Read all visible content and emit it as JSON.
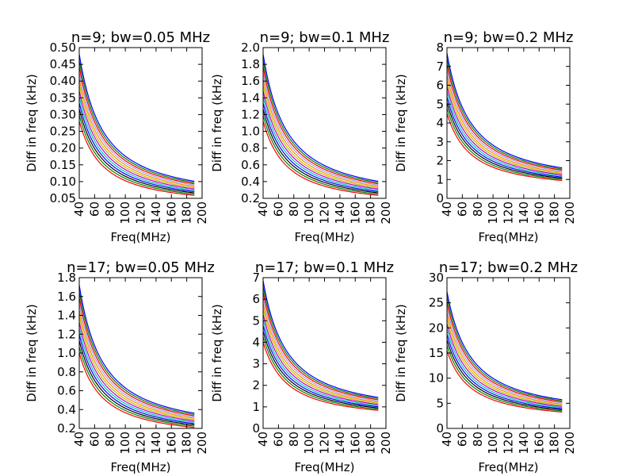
{
  "figure": {
    "background": "#ffffff"
  },
  "series_colors": [
    "#ff0000",
    "#008000",
    "#000000",
    "#0000ff",
    "#00bfbf",
    "#bf00bf",
    "#bfbf00",
    "#ff8c00",
    "#a0a0ff",
    "#ff0000",
    "#008000",
    "#0000ff"
  ],
  "chart_data": [
    {
      "type": "line",
      "title": "n=9; bw=0.05 MHz",
      "xlabel": "Freq(MHz)",
      "ylabel": "Diff in freq (kHz)",
      "xlim": [
        40,
        200
      ],
      "ylim": [
        0.05,
        0.5
      ],
      "xticks": [
        40,
        60,
        80,
        100,
        120,
        140,
        160,
        180,
        200
      ],
      "yticks": [
        0.05,
        0.1,
        0.15,
        0.2,
        0.25,
        0.3,
        0.35,
        0.4,
        0.45,
        0.5
      ],
      "ytick_labels": [
        "0.05",
        "0.10",
        "0.15",
        "0.20",
        "0.25",
        "0.30",
        "0.35",
        "0.40",
        "0.45",
        "0.50"
      ],
      "x_range": [
        40,
        190
      ],
      "y_at_start_range": [
        0.28,
        0.48
      ],
      "series_count": 12,
      "grid": false
    },
    {
      "type": "line",
      "title": "n=9; bw=0.1 MHz",
      "xlabel": "Freq(MHz)",
      "ylabel": "Diff in freq (kHz)",
      "xlim": [
        40,
        200
      ],
      "ylim": [
        0.2,
        2.0
      ],
      "xticks": [
        40,
        60,
        80,
        100,
        120,
        140,
        160,
        180,
        200
      ],
      "yticks": [
        0.2,
        0.4,
        0.6,
        0.8,
        1.0,
        1.2,
        1.4,
        1.6,
        1.8,
        2.0
      ],
      "ytick_labels": [
        "0.2",
        "0.4",
        "0.6",
        "0.8",
        "1.0",
        "1.2",
        "1.4",
        "1.6",
        "1.8",
        "2.0"
      ],
      "x_range": [
        40,
        190
      ],
      "y_at_start_range": [
        1.12,
        1.92
      ],
      "series_count": 12,
      "grid": false
    },
    {
      "type": "line",
      "title": "n=9; bw=0.2 MHz",
      "xlabel": "Freq(MHz)",
      "ylabel": "Diff in freq (kHz)",
      "xlim": [
        40,
        200
      ],
      "ylim": [
        0,
        8
      ],
      "xticks": [
        40,
        60,
        80,
        100,
        120,
        140,
        160,
        180,
        200
      ],
      "yticks": [
        0,
        1,
        2,
        3,
        4,
        5,
        6,
        7,
        8
      ],
      "ytick_labels": [
        "0",
        "1",
        "2",
        "3",
        "4",
        "5",
        "6",
        "7",
        "8"
      ],
      "x_range": [
        40,
        190
      ],
      "y_at_start_range": [
        4.5,
        7.7
      ],
      "series_count": 12,
      "grid": false
    },
    {
      "type": "line",
      "title": "n=17; bw=0.05 MHz",
      "xlabel": "Freq(MHz)",
      "ylabel": "Diff in freq (kHz)",
      "xlim": [
        40,
        200
      ],
      "ylim": [
        0.2,
        1.8
      ],
      "xticks": [
        40,
        60,
        80,
        100,
        120,
        140,
        160,
        180,
        200
      ],
      "yticks": [
        0.2,
        0.4,
        0.6,
        0.8,
        1.0,
        1.2,
        1.4,
        1.6,
        1.8
      ],
      "ytick_labels": [
        "0.2",
        "0.4",
        "0.6",
        "0.8",
        "1.0",
        "1.2",
        "1.4",
        "1.6",
        "1.8"
      ],
      "x_range": [
        40,
        190
      ],
      "y_at_start_range": [
        1.0,
        1.72
      ],
      "series_count": 12,
      "grid": false
    },
    {
      "type": "line",
      "title": "n=17; bw=0.1 MHz",
      "xlabel": "Freq(MHz)",
      "ylabel": "Diff in freq (kHz)",
      "xlim": [
        40,
        200
      ],
      "ylim": [
        0,
        7
      ],
      "xticks": [
        40,
        60,
        80,
        100,
        120,
        140,
        160,
        180,
        200
      ],
      "yticks": [
        0,
        1,
        2,
        3,
        4,
        5,
        6,
        7
      ],
      "ytick_labels": [
        "0",
        "1",
        "2",
        "3",
        "4",
        "5",
        "6",
        "7"
      ],
      "x_range": [
        40,
        190
      ],
      "y_at_start_range": [
        4.0,
        6.85
      ],
      "series_count": 12,
      "grid": false
    },
    {
      "type": "line",
      "title": "n=17; bw=0.2 MHz",
      "xlabel": "Freq(MHz)",
      "ylabel": "Diff in freq (kHz)",
      "xlim": [
        40,
        200
      ],
      "ylim": [
        0,
        30
      ],
      "xticks": [
        40,
        60,
        80,
        100,
        120,
        140,
        160,
        180,
        200
      ],
      "yticks": [
        0,
        5,
        10,
        15,
        20,
        25,
        30
      ],
      "ytick_labels": [
        "0",
        "5",
        "10",
        "15",
        "20",
        "25",
        "30"
      ],
      "x_range": [
        40,
        190
      ],
      "y_at_start_range": [
        15.5,
        27.2
      ],
      "series_count": 12,
      "grid": false
    }
  ]
}
